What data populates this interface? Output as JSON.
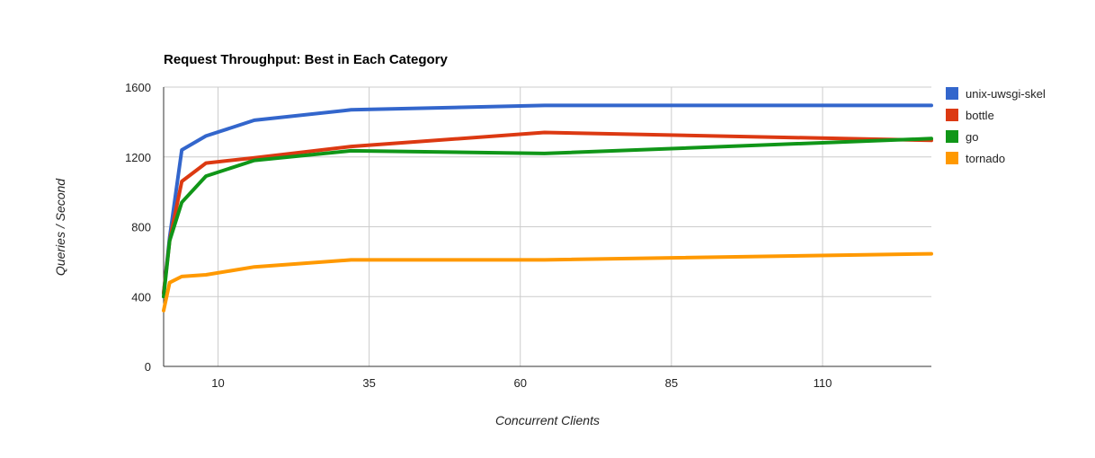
{
  "chart_data": {
    "type": "line",
    "title": "Request Throughput: Best in Each Category",
    "xlabel": "Concurrent Clients",
    "ylabel": "Queries / Second",
    "xlim": [
      1,
      128
    ],
    "ylim": [
      0,
      1600
    ],
    "xticks": [
      10,
      35,
      60,
      85,
      110
    ],
    "yticks": [
      0,
      400,
      800,
      1200,
      1600
    ],
    "grid": true,
    "legend_position": "right",
    "x": [
      1,
      2,
      4,
      8,
      16,
      32,
      64,
      128
    ],
    "series": [
      {
        "name": "unix-uwsgi-skel",
        "color": "#3366cc",
        "values": [
          420,
          740,
          1240,
          1320,
          1410,
          1470,
          1495,
          1495
        ]
      },
      {
        "name": "bottle",
        "color": "#dc3912",
        "values": [
          420,
          720,
          1060,
          1165,
          1195,
          1260,
          1340,
          1295
        ]
      },
      {
        "name": "go",
        "color": "#109618",
        "values": [
          400,
          720,
          940,
          1090,
          1180,
          1235,
          1220,
          1305
        ]
      },
      {
        "name": "tornado",
        "color": "#ff9900",
        "values": [
          320,
          480,
          515,
          525,
          570,
          610,
          610,
          645
        ]
      }
    ]
  }
}
